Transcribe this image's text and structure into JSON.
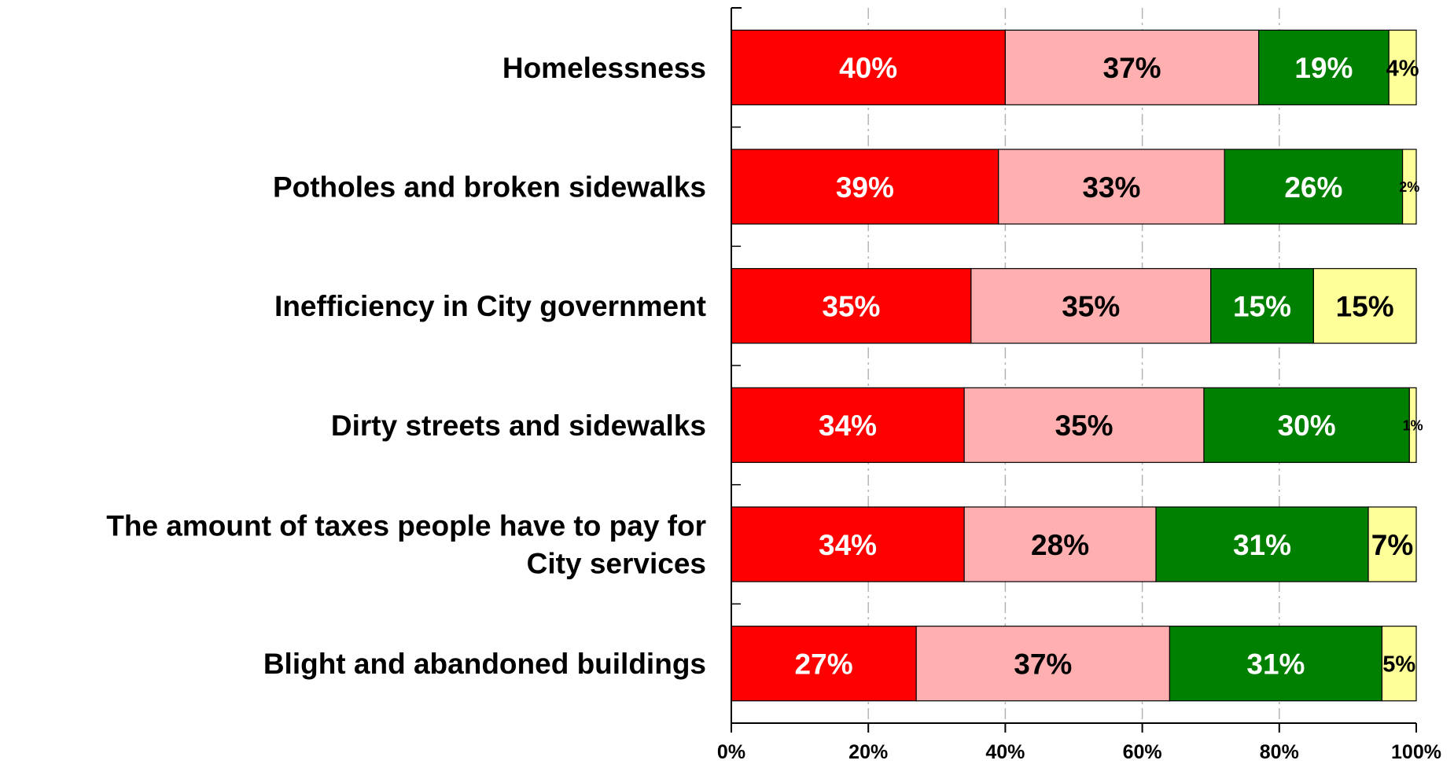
{
  "chart_data": {
    "type": "bar",
    "orientation": "horizontal",
    "stacked": "percent",
    "title": "",
    "xlabel": "",
    "ylabel": "",
    "xlim": [
      0,
      100
    ],
    "x_ticks": [
      "0%",
      "20%",
      "40%",
      "60%",
      "80%",
      "100%"
    ],
    "grid": "vertical dashed",
    "legend": "none",
    "categories": [
      [
        "Homelessness"
      ],
      [
        "Potholes and broken sidewalks"
      ],
      [
        "Inefficiency in City government"
      ],
      [
        "Dirty streets and sidewalks"
      ],
      [
        "The amount of taxes people have to pay for",
        "City services"
      ],
      [
        "Blight and abandoned buildings"
      ]
    ],
    "series": [
      {
        "color": "#ff0000",
        "label_color": "#ffffff",
        "values": [
          40,
          39,
          35,
          34,
          34,
          27
        ]
      },
      {
        "color": "#ffafaf",
        "label_color": "#000000",
        "values": [
          37,
          33,
          35,
          35,
          28,
          37
        ]
      },
      {
        "color": "#008000",
        "label_color": "#ffffff",
        "values": [
          19,
          26,
          15,
          30,
          31,
          31
        ]
      },
      {
        "color": "#ffff99",
        "label_color": "#000000",
        "values": [
          4,
          2,
          15,
          1,
          7,
          5
        ]
      }
    ]
  }
}
